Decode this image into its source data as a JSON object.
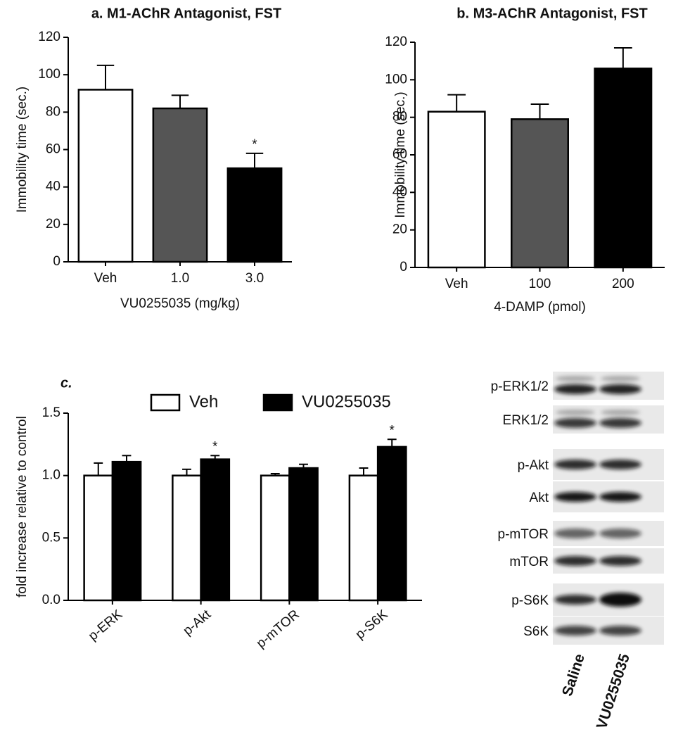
{
  "chart_data": [
    {
      "type": "bar",
      "title": "a. M1-AChR Antagonist, FST",
      "ylabel": "Immobility time (sec.)",
      "xlabel": "VU0255035 (mg/kg)",
      "categories": [
        "Veh",
        "1.0",
        "3.0"
      ],
      "values": [
        92,
        82,
        50
      ],
      "errors": [
        13,
        7,
        8
      ],
      "colors": [
        "#ffffff",
        "#555555",
        "#000000"
      ],
      "ylim": [
        0,
        120
      ],
      "yticks": [
        0,
        20,
        40,
        60,
        80,
        100,
        120
      ],
      "annotations": [
        {
          "text": "*",
          "category": 2
        }
      ]
    },
    {
      "type": "bar",
      "title": "b. M3-AChR Antagonist, FST",
      "ylabel": "Immobility time (sec.)",
      "xlabel": "4-DAMP (pmol)",
      "categories": [
        "Veh",
        "100",
        "200"
      ],
      "values": [
        83,
        79,
        106
      ],
      "errors": [
        9,
        8,
        11
      ],
      "colors": [
        "#ffffff",
        "#555555",
        "#000000"
      ],
      "ylim": [
        0,
        120
      ],
      "yticks": [
        0,
        20,
        40,
        60,
        80,
        100,
        120
      ]
    },
    {
      "type": "bar",
      "title": "c.",
      "ylabel": "fold increase relative to control",
      "categories": [
        "p-ERK",
        "p-Akt",
        "p-mTOR",
        "p-S6K"
      ],
      "series": [
        {
          "name": "Veh",
          "color": "#ffffff",
          "values": [
            1.0,
            1.0,
            1.0,
            1.0
          ],
          "errors": [
            0.1,
            0.05,
            0.015,
            0.06
          ]
        },
        {
          "name": "VU0255035",
          "color": "#000000",
          "values": [
            1.11,
            1.13,
            1.06,
            1.23
          ],
          "errors": [
            0.05,
            0.03,
            0.03,
            0.06
          ]
        }
      ],
      "ylim": [
        0,
        1.5
      ],
      "yticks": [
        {
          "value": 0,
          "label": "0.0"
        },
        0.5,
        {
          "value": 1,
          "label": "1.0"
        },
        1.5
      ],
      "legend": "top",
      "annotations": [
        {
          "text": "*",
          "category": 1,
          "series": 1
        },
        {
          "text": "*",
          "category": 3,
          "series": 1
        }
      ]
    }
  ],
  "blot": {
    "rows": [
      "p-ERK1/2",
      "ERK1/2",
      "p-Akt",
      "Akt",
      "p-mTOR",
      "mTOR",
      "p-S6K",
      "S6K"
    ],
    "lanes": [
      "Saline",
      "VU0255035"
    ]
  }
}
